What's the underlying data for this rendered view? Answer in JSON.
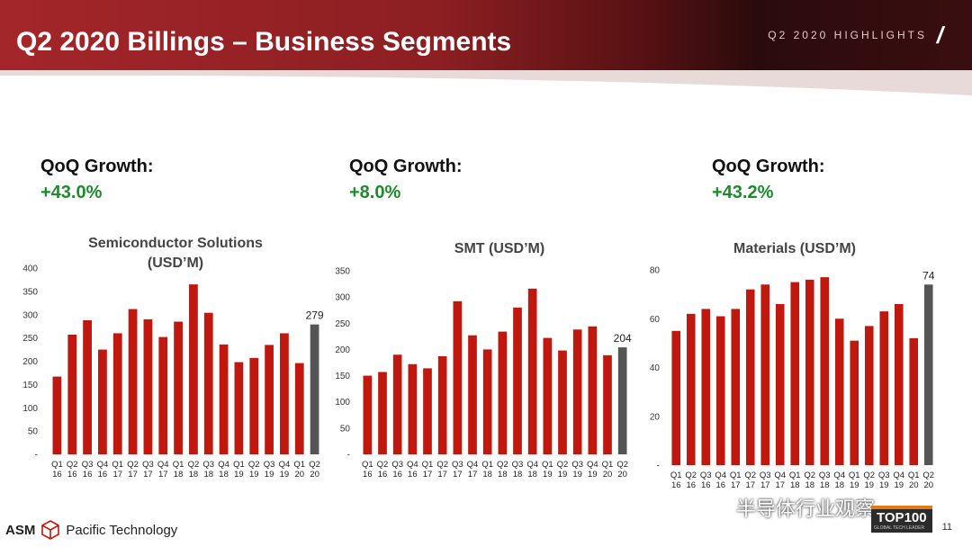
{
  "header": {
    "title": "Q2 2020 Billings – Business Segments",
    "tag": "Q2 2020 HIGHLIGHTS",
    "slash": "/"
  },
  "panels": [
    {
      "growth_label": "QoQ Growth:",
      "growth_value": "+43.0%"
    },
    {
      "growth_label": "QoQ Growth:",
      "growth_value": "+8.0%"
    },
    {
      "growth_label": "QoQ Growth:",
      "growth_value": "+43.2%"
    }
  ],
  "colors": {
    "bar": "#c0170e",
    "highlight_bar": "#555555",
    "growth": "#1a8c2a",
    "banner": "#a3262a"
  },
  "chart_data": [
    {
      "type": "bar",
      "title": "Semiconductor Solutions (USD’M)",
      "title_lines": [
        "Semiconductor Solutions",
        "(USD’M)"
      ],
      "categories": [
        "Q1 16",
        "Q2 16",
        "Q3 16",
        "Q4 16",
        "Q1 17",
        "Q2 17",
        "Q3 17",
        "Q4 17",
        "Q1 18",
        "Q2 18",
        "Q3 18",
        "Q4 18",
        "Q1 19",
        "Q2 19",
        "Q3 19",
        "Q4 19",
        "Q1 20",
        "Q2 20"
      ],
      "cat_top": [
        "Q1",
        "Q2",
        "Q3",
        "Q4",
        "Q1",
        "Q2",
        "Q3",
        "Q4",
        "Q1",
        "Q2",
        "Q3",
        "Q4",
        "Q1",
        "Q2",
        "Q3",
        "Q4",
        "Q1",
        "Q2"
      ],
      "cat_bottom": [
        "16",
        "16",
        "16",
        "16",
        "17",
        "17",
        "17",
        "17",
        "18",
        "18",
        "18",
        "18",
        "19",
        "19",
        "19",
        "19",
        "20",
        "20"
      ],
      "values": [
        167,
        257,
        288,
        225,
        260,
        312,
        290,
        252,
        285,
        365,
        304,
        236,
        198,
        207,
        235,
        260,
        196,
        279
      ],
      "highlight_index": 17,
      "data_label": "279",
      "ylim": [
        0,
        400
      ],
      "yticks": [
        0,
        50,
        100,
        150,
        200,
        250,
        300,
        350,
        400
      ],
      "ytick_labels": [
        "-",
        "50",
        "100",
        "150",
        "200",
        "250",
        "300",
        "350",
        "400"
      ]
    },
    {
      "type": "bar",
      "title": "SMT (USD’M)",
      "title_lines": [
        "SMT (USD’M)"
      ],
      "categories": [
        "Q1 16",
        "Q2 16",
        "Q3 16",
        "Q4 16",
        "Q1 17",
        "Q2 17",
        "Q3 17",
        "Q4 17",
        "Q1 18",
        "Q2 18",
        "Q3 18",
        "Q4 18",
        "Q1 19",
        "Q2 19",
        "Q3 19",
        "Q4 19",
        "Q1 20",
        "Q2 20"
      ],
      "cat_top": [
        "Q1",
        "Q2",
        "Q3",
        "Q4",
        "Q1",
        "Q2",
        "Q3",
        "Q4",
        "Q1",
        "Q2",
        "Q3",
        "Q4",
        "Q1",
        "Q2",
        "Q3",
        "Q4",
        "Q1",
        "Q2"
      ],
      "cat_bottom": [
        "16",
        "16",
        "16",
        "16",
        "17",
        "17",
        "17",
        "17",
        "18",
        "18",
        "18",
        "18",
        "19",
        "19",
        "19",
        "19",
        "20",
        "20"
      ],
      "values": [
        150,
        157,
        190,
        172,
        164,
        187,
        292,
        227,
        200,
        234,
        280,
        316,
        222,
        198,
        238,
        244,
        189,
        204
      ],
      "highlight_index": 17,
      "data_label": "204",
      "ylim": [
        0,
        350
      ],
      "yticks": [
        0,
        50,
        100,
        150,
        200,
        250,
        300,
        350
      ],
      "ytick_labels": [
        "-",
        "50",
        "100",
        "150",
        "200",
        "250",
        "300",
        "350"
      ]
    },
    {
      "type": "bar",
      "title": "Materials (USD’M)",
      "title_lines": [
        "Materials (USD’M)"
      ],
      "categories": [
        "Q1 16",
        "Q2 16",
        "Q3 16",
        "Q4 16",
        "Q1 17",
        "Q2 17",
        "Q3 17",
        "Q4 17",
        "Q1 18",
        "Q2 18",
        "Q3 18",
        "Q4 18",
        "Q1 19",
        "Q2 19",
        "Q3 19",
        "Q4 19",
        "Q1 20",
        "Q2 20"
      ],
      "cat_top": [
        "Q1",
        "Q2",
        "Q3",
        "Q4",
        "Q1",
        "Q2",
        "Q3",
        "Q4",
        "Q1",
        "Q2",
        "Q3",
        "Q4",
        "Q1",
        "Q2",
        "Q3",
        "Q4",
        "Q1",
        "Q2"
      ],
      "cat_bottom": [
        "16",
        "16",
        "16",
        "16",
        "17",
        "17",
        "17",
        "17",
        "18",
        "18",
        "18",
        "18",
        "19",
        "19",
        "19",
        "19",
        "20",
        "20"
      ],
      "values": [
        55,
        62,
        64,
        61,
        64,
        72,
        74,
        66,
        75,
        76,
        77,
        60,
        51,
        57,
        63,
        66,
        52,
        74
      ],
      "highlight_index": 17,
      "data_label": "74",
      "ylim": [
        0,
        80
      ],
      "yticks": [
        0,
        20,
        40,
        60,
        80
      ],
      "ytick_labels": [
        "-",
        "20",
        "40",
        "60",
        "80"
      ]
    }
  ],
  "footer": {
    "brand_left": "ASM",
    "brand_right": "Pacific Technology",
    "page_number": "11",
    "watermark": "半导体行业观察",
    "badge_main": "TOP100",
    "badge_sub": "GLOBAL TECH LEADER"
  }
}
